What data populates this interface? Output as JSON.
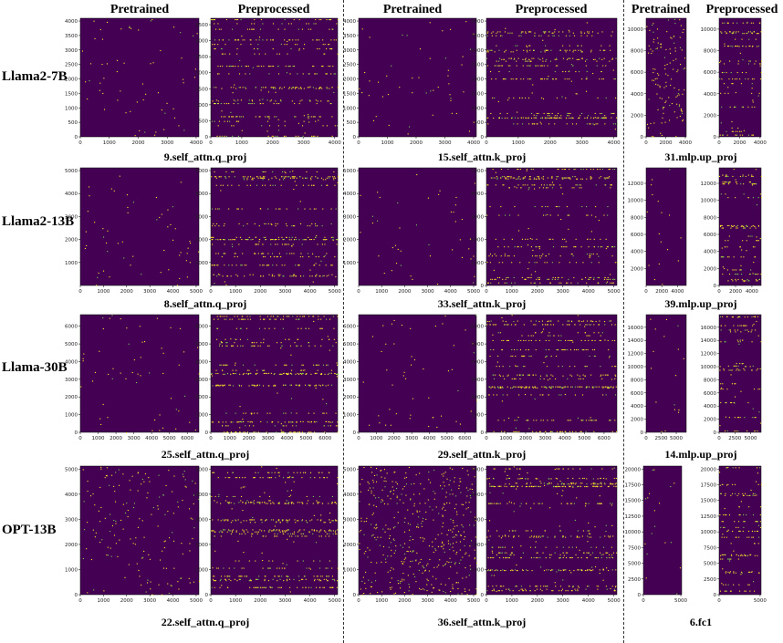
{
  "colors": {
    "background": "#440154",
    "sparse": "#fde725",
    "mid": "#7ad151"
  },
  "column_headers": [
    {
      "text": "Pretrained"
    },
    {
      "text": "Preprocessed"
    },
    {
      "text": "Pretrained"
    },
    {
      "text": "Preprocessed"
    },
    {
      "text": "Pretrained"
    },
    {
      "text": "Preprocessed"
    }
  ],
  "row_labels": [
    "Llama2-7B",
    "Llama2-13B",
    "Llama-30B",
    "OPT-13B"
  ],
  "captions": [
    [
      "9.self_attn.q_proj",
      "15.self_attn.k_proj",
      "31.mlp.up_proj"
    ],
    [
      "8.self_attn.q_proj",
      "33.self_attn.k_proj",
      "39.mlp.up_proj"
    ],
    [
      "25.self_attn.q_proj",
      "29.self_attn.k_proj",
      "14.mlp.up_proj"
    ],
    [
      "22.self_attn.q_proj",
      "36.self_attn.k_proj",
      "6.fc1"
    ]
  ],
  "chart_data": [
    {
      "type": "heatmap",
      "model": "Llama2-7B",
      "layer": "9.self_attn.q_proj",
      "variant": "Pretrained",
      "xticks": [
        "0",
        "1000",
        "2000",
        "3000",
        "4000"
      ],
      "yticks": [
        "0",
        "500",
        "1000",
        "1500",
        "2000",
        "2500",
        "3000",
        "3500",
        "4000"
      ],
      "xlim": [
        0,
        4096
      ],
      "ylim": [
        0,
        4096
      ],
      "density": 0.3,
      "rows": 0.0,
      "uniform": 0.0
    },
    {
      "type": "heatmap",
      "model": "Llama2-7B",
      "layer": "9.self_attn.q_proj",
      "variant": "Preprocessed",
      "xticks": [
        "0",
        "1000",
        "2000",
        "3000",
        "4000"
      ],
      "yticks": [
        "0",
        "500",
        "1000",
        "1500",
        "2000",
        "2500",
        "3000",
        "3500"
      ],
      "xlim": [
        0,
        4096
      ],
      "ylim": [
        0,
        3700
      ],
      "density": 0.15,
      "rows": 0.85,
      "uniform": 0.0
    },
    {
      "type": "heatmap",
      "model": "Llama2-7B",
      "layer": "15.self_attn.k_proj",
      "variant": "Pretrained",
      "xticks": [
        "0",
        "1000",
        "2000",
        "3000",
        "4000"
      ],
      "yticks": [
        "0",
        "500",
        "1000",
        "1500",
        "2000",
        "2500",
        "3000",
        "3500",
        "4000"
      ],
      "xlim": [
        0,
        4096
      ],
      "ylim": [
        0,
        4096
      ],
      "density": 0.25,
      "rows": 0.0,
      "uniform": 0.0
    },
    {
      "type": "heatmap",
      "model": "Llama2-7B",
      "layer": "15.self_attn.k_proj",
      "variant": "Preprocessed",
      "xticks": [
        "0",
        "1000",
        "2000",
        "3000",
        "4000"
      ],
      "yticks": [
        "0",
        "500",
        "1000",
        "1500",
        "2000",
        "2500",
        "3000",
        "3500",
        "4000"
      ],
      "xlim": [
        0,
        4096
      ],
      "ylim": [
        0,
        4096
      ],
      "density": 0.15,
      "rows": 0.85,
      "uniform": 0.0
    },
    {
      "type": "heatmap",
      "model": "Llama2-7B",
      "layer": "31.mlp.up_proj",
      "variant": "Pretrained",
      "xticks": [
        "0",
        "2000",
        "4000"
      ],
      "yticks": [
        "0",
        "2000",
        "4000",
        "6000",
        "8000",
        "10000"
      ],
      "xlim": [
        0,
        4096
      ],
      "ylim": [
        0,
        11008
      ],
      "density": 0.65,
      "rows": 0.0,
      "uniform": 0.6
    },
    {
      "type": "heatmap",
      "model": "Llama2-7B",
      "layer": "31.mlp.up_proj",
      "variant": "Preprocessed",
      "xticks": [
        "0",
        "2000",
        "4000"
      ],
      "yticks": [
        "0",
        "2000",
        "4000",
        "6000",
        "8000",
        "10000"
      ],
      "xlim": [
        0,
        4096
      ],
      "ylim": [
        0,
        11008
      ],
      "density": 0.25,
      "rows": 0.8,
      "uniform": 0.0
    },
    {
      "type": "heatmap",
      "model": "Llama2-13B",
      "layer": "8.self_attn.q_proj",
      "variant": "Pretrained",
      "xticks": [
        "0",
        "1000",
        "2000",
        "3000",
        "4000",
        "5000"
      ],
      "yticks": [
        "1000",
        "2000",
        "3000",
        "4000",
        "5000"
      ],
      "xlim": [
        0,
        5120
      ],
      "ylim": [
        0,
        5120
      ],
      "density": 0.28,
      "rows": 0.0,
      "uniform": 0.0
    },
    {
      "type": "heatmap",
      "model": "Llama2-13B",
      "layer": "8.self_attn.q_proj",
      "variant": "Preprocessed",
      "xticks": [
        "0",
        "1000",
        "2000",
        "3000",
        "4000",
        "5000"
      ],
      "yticks": [
        "1000",
        "2000",
        "3000",
        "4000",
        "5000"
      ],
      "xlim": [
        0,
        5120
      ],
      "ylim": [
        0,
        5120
      ],
      "density": 0.15,
      "rows": 0.8,
      "uniform": 0.0
    },
    {
      "type": "heatmap",
      "model": "Llama2-13B",
      "layer": "33.self_attn.k_proj",
      "variant": "Pretrained",
      "xticks": [
        "0",
        "1000",
        "2000",
        "3000",
        "4000",
        "5000"
      ],
      "yticks": [
        "1000",
        "2000",
        "3000",
        "4000",
        "5000"
      ],
      "xlim": [
        0,
        5120
      ],
      "ylim": [
        0,
        5120
      ],
      "density": 0.22,
      "rows": 0.0,
      "uniform": 0.0
    },
    {
      "type": "heatmap",
      "model": "Llama2-13B",
      "layer": "33.self_attn.k_proj",
      "variant": "Preprocessed",
      "xticks": [
        "0",
        "1000",
        "2000",
        "3000",
        "4000",
        "5000"
      ],
      "yticks": [
        "0",
        "1000",
        "2000",
        "3000",
        "4000",
        "5000"
      ],
      "xlim": [
        0,
        5120
      ],
      "ylim": [
        0,
        5120
      ],
      "density": 0.15,
      "rows": 0.8,
      "uniform": 0.0
    },
    {
      "type": "heatmap",
      "model": "Llama2-13B",
      "layer": "39.mlp.up_proj",
      "variant": "Pretrained",
      "xticks": [
        "0",
        "2000",
        "4000"
      ],
      "yticks": [
        "2000",
        "4000",
        "6000",
        "8000",
        "10000",
        "12000"
      ],
      "xlim": [
        0,
        5120
      ],
      "ylim": [
        0,
        13824
      ],
      "density": 0.25,
      "rows": 0.0,
      "uniform": 0.0
    },
    {
      "type": "heatmap",
      "model": "Llama2-13B",
      "layer": "39.mlp.up_proj",
      "variant": "Preprocessed",
      "xticks": [
        "0",
        "2000",
        "4000"
      ],
      "yticks": [
        "0",
        "2000",
        "4000",
        "6000",
        "8000",
        "10000",
        "12000"
      ],
      "xlim": [
        0,
        5120
      ],
      "ylim": [
        0,
        13824
      ],
      "density": 0.25,
      "rows": 0.8,
      "uniform": 0.0
    },
    {
      "type": "heatmap",
      "model": "Llama-30B",
      "layer": "25.self_attn.q_proj",
      "variant": "Pretrained",
      "xticks": [
        "0",
        "1000",
        "2000",
        "3000",
        "4000",
        "5000",
        "6000"
      ],
      "yticks": [
        "0",
        "1000",
        "2000",
        "3000",
        "4000",
        "5000",
        "6000"
      ],
      "xlim": [
        0,
        6656
      ],
      "ylim": [
        0,
        6656
      ],
      "density": 0.28,
      "rows": 0.0,
      "uniform": 0.0
    },
    {
      "type": "heatmap",
      "model": "Llama-30B",
      "layer": "25.self_attn.q_proj",
      "variant": "Preprocessed",
      "xticks": [
        "0",
        "1000",
        "2000",
        "3000",
        "4000",
        "5000",
        "6000"
      ],
      "yticks": [
        "0",
        "1000",
        "2000",
        "3000",
        "4000",
        "5000",
        "6000"
      ],
      "xlim": [
        0,
        6656
      ],
      "ylim": [
        0,
        6656
      ],
      "density": 0.15,
      "rows": 0.85,
      "uniform": 0.0
    },
    {
      "type": "heatmap",
      "model": "Llama-30B",
      "layer": "29.self_attn.k_proj",
      "variant": "Pretrained",
      "xticks": [
        "0",
        "1000",
        "2000",
        "3000",
        "4000",
        "5000",
        "6000"
      ],
      "yticks": [
        "0",
        "1000",
        "2000",
        "3000",
        "4000",
        "5000",
        "6000"
      ],
      "xlim": [
        0,
        6656
      ],
      "ylim": [
        0,
        6656
      ],
      "density": 0.25,
      "rows": 0.0,
      "uniform": 0.0
    },
    {
      "type": "heatmap",
      "model": "Llama-30B",
      "layer": "29.self_attn.k_proj",
      "variant": "Preprocessed",
      "xticks": [
        "0",
        "1000",
        "2000",
        "3000",
        "4000",
        "5000",
        "6000"
      ],
      "yticks": [
        "0",
        "1000",
        "2000",
        "3000",
        "4000",
        "5000",
        "6000"
      ],
      "xlim": [
        0,
        6656
      ],
      "ylim": [
        0,
        6656
      ],
      "density": 0.15,
      "rows": 0.85,
      "uniform": 0.0
    },
    {
      "type": "heatmap",
      "model": "Llama-30B",
      "layer": "14.mlp.up_proj",
      "variant": "Pretrained",
      "xticks": [
        "0",
        "2500",
        "5000"
      ],
      "yticks": [
        "0",
        "2000",
        "4000",
        "6000",
        "8000",
        "10000",
        "12000",
        "14000",
        "16000"
      ],
      "xlim": [
        0,
        6656
      ],
      "ylim": [
        0,
        17920
      ],
      "density": 0.25,
      "rows": 0.0,
      "uniform": 0.0
    },
    {
      "type": "heatmap",
      "model": "Llama-30B",
      "layer": "14.mlp.up_proj",
      "variant": "Preprocessed",
      "xticks": [
        "0",
        "2500",
        "5000"
      ],
      "yticks": [
        "0",
        "2000",
        "4000",
        "6000",
        "8000",
        "10000",
        "12000",
        "14000",
        "16000"
      ],
      "xlim": [
        0,
        6656
      ],
      "ylim": [
        0,
        17920
      ],
      "density": 0.25,
      "rows": 0.8,
      "uniform": 0.0
    },
    {
      "type": "heatmap",
      "model": "OPT-13B",
      "layer": "22.self_attn.q_proj",
      "variant": "Pretrained",
      "xticks": [
        "0",
        "1000",
        "2000",
        "3000",
        "4000",
        "5000"
      ],
      "yticks": [
        "0",
        "1000",
        "2000",
        "3000",
        "4000",
        "5000"
      ],
      "xlim": [
        0,
        5120
      ],
      "ylim": [
        0,
        5120
      ],
      "density": 0.4,
      "rows": 0.0,
      "uniform": 0.3
    },
    {
      "type": "heatmap",
      "model": "OPT-13B",
      "layer": "22.self_attn.q_proj",
      "variant": "Preprocessed",
      "xticks": [
        "0",
        "1000",
        "2000",
        "3000",
        "4000",
        "5000"
      ],
      "yticks": [
        "0",
        "1000",
        "2000",
        "3000",
        "4000",
        "5000"
      ],
      "xlim": [
        0,
        5120
      ],
      "ylim": [
        0,
        5120
      ],
      "density": 0.2,
      "rows": 0.85,
      "uniform": 0.0
    },
    {
      "type": "heatmap",
      "model": "OPT-13B",
      "layer": "36.self_attn.k_proj",
      "variant": "Pretrained",
      "xticks": [
        "0",
        "1000",
        "2000",
        "3000",
        "4000",
        "5000"
      ],
      "yticks": [
        "0",
        "1000",
        "2000",
        "3000",
        "4000",
        "5000"
      ],
      "xlim": [
        0,
        5120
      ],
      "ylim": [
        0,
        5120
      ],
      "density": 0.75,
      "rows": 0.0,
      "uniform": 0.6
    },
    {
      "type": "heatmap",
      "model": "OPT-13B",
      "layer": "36.self_attn.k_proj",
      "variant": "Preprocessed",
      "xticks": [
        "0",
        "1000",
        "2000",
        "3000",
        "4000",
        "5000"
      ],
      "yticks": [
        "0",
        "1000",
        "2000",
        "3000",
        "4000",
        "5000"
      ],
      "xlim": [
        0,
        5120
      ],
      "ylim": [
        0,
        5120
      ],
      "density": 0.3,
      "rows": 0.85,
      "uniform": 0.0
    },
    {
      "type": "heatmap",
      "model": "OPT-13B",
      "layer": "6.fc1",
      "variant": "Pretrained",
      "xticks": [
        "0",
        "5000"
      ],
      "yticks": [
        "0",
        "2500",
        "5000",
        "7500",
        "10000",
        "12500",
        "15000",
        "17500",
        "20000"
      ],
      "xlim": [
        0,
        5120
      ],
      "ylim": [
        0,
        20480
      ],
      "density": 0.25,
      "rows": 0.0,
      "uniform": 0.0
    },
    {
      "type": "heatmap",
      "model": "OPT-13B",
      "layer": "6.fc1",
      "variant": "Preprocessed",
      "xticks": [
        "0",
        "5000"
      ],
      "yticks": [
        "0",
        "2500",
        "5000",
        "7500",
        "10000",
        "12500",
        "15000",
        "17500",
        "20000"
      ],
      "xlim": [
        0,
        5120
      ],
      "ylim": [
        0,
        20480
      ],
      "density": 0.25,
      "rows": 0.8,
      "uniform": 0.0
    }
  ]
}
